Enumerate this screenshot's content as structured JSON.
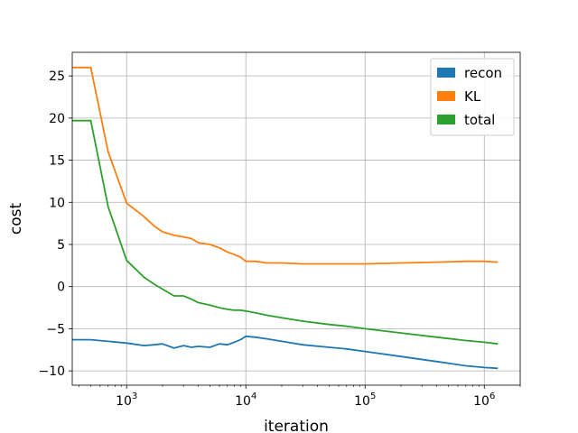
{
  "chart_data": {
    "type": "line",
    "xlabel": "iteration",
    "ylabel": "cost",
    "xscale": "log",
    "xlim": [
      350,
      2000000
    ],
    "ylim": [
      -11.7,
      27.8
    ],
    "grid": true,
    "legend": "top-right",
    "x_tick_labels": [
      {
        "value": 1000,
        "base": "10",
        "exp": "3"
      },
      {
        "value": 10000,
        "base": "10",
        "exp": "4"
      },
      {
        "value": 100000,
        "base": "10",
        "exp": "5"
      },
      {
        "value": 1000000,
        "base": "10",
        "exp": "6"
      }
    ],
    "y_ticks": [
      25,
      20,
      15,
      10,
      5,
      0,
      -5,
      -10
    ],
    "y_tick_labels": [
      "25",
      "20",
      "15",
      "10",
      "5",
      "0",
      "−5",
      "−10"
    ],
    "series": [
      {
        "name": "recon",
        "color": "#1f77b4",
        "x": [
          350,
          500,
          700,
          1000,
          1400,
          1700,
          2000,
          2500,
          3000,
          3500,
          4000,
          5000,
          6000,
          7000,
          8000,
          9000,
          10000,
          12000,
          15000,
          20000,
          30000,
          50000,
          70000,
          100000,
          200000,
          400000,
          700000,
          1000000,
          1300000
        ],
        "y": [
          -6.3,
          -6.3,
          -6.5,
          -6.7,
          -7.0,
          -6.9,
          -6.8,
          -7.3,
          -7.0,
          -7.2,
          -7.1,
          -7.2,
          -6.8,
          -6.9,
          -6.6,
          -6.3,
          -5.9,
          -6.0,
          -6.2,
          -6.5,
          -6.9,
          -7.2,
          -7.4,
          -7.7,
          -8.3,
          -8.9,
          -9.4,
          -9.6,
          -9.7
        ]
      },
      {
        "name": "KL",
        "color": "#ff7f0e",
        "x": [
          350,
          500,
          700,
          1000,
          1400,
          1700,
          2000,
          2500,
          3000,
          3500,
          4000,
          5000,
          6000,
          7000,
          8000,
          9000,
          10000,
          12000,
          15000,
          20000,
          30000,
          50000,
          70000,
          100000,
          200000,
          400000,
          700000,
          1000000,
          1300000
        ],
        "y": [
          26.0,
          26.0,
          16.0,
          9.9,
          8.3,
          7.2,
          6.5,
          6.1,
          5.9,
          5.7,
          5.2,
          5.0,
          4.6,
          4.1,
          3.8,
          3.5,
          3.0,
          3.0,
          2.8,
          2.8,
          2.7,
          2.7,
          2.7,
          2.7,
          2.8,
          2.9,
          3.0,
          3.0,
          2.9
        ]
      },
      {
        "name": "total",
        "color": "#2ca02c",
        "x": [
          350,
          500,
          700,
          1000,
          1400,
          1700,
          2000,
          2500,
          3000,
          3500,
          4000,
          5000,
          6000,
          7000,
          8000,
          9000,
          10000,
          12000,
          15000,
          20000,
          30000,
          50000,
          70000,
          100000,
          200000,
          400000,
          700000,
          1000000,
          1300000
        ],
        "y": [
          19.7,
          19.7,
          9.5,
          3.1,
          1.1,
          0.3,
          -0.3,
          -1.1,
          -1.1,
          -1.5,
          -1.9,
          -2.2,
          -2.5,
          -2.7,
          -2.8,
          -2.8,
          -2.9,
          -3.1,
          -3.4,
          -3.7,
          -4.1,
          -4.5,
          -4.7,
          -5.0,
          -5.5,
          -6.0,
          -6.4,
          -6.6,
          -6.8
        ]
      }
    ]
  }
}
